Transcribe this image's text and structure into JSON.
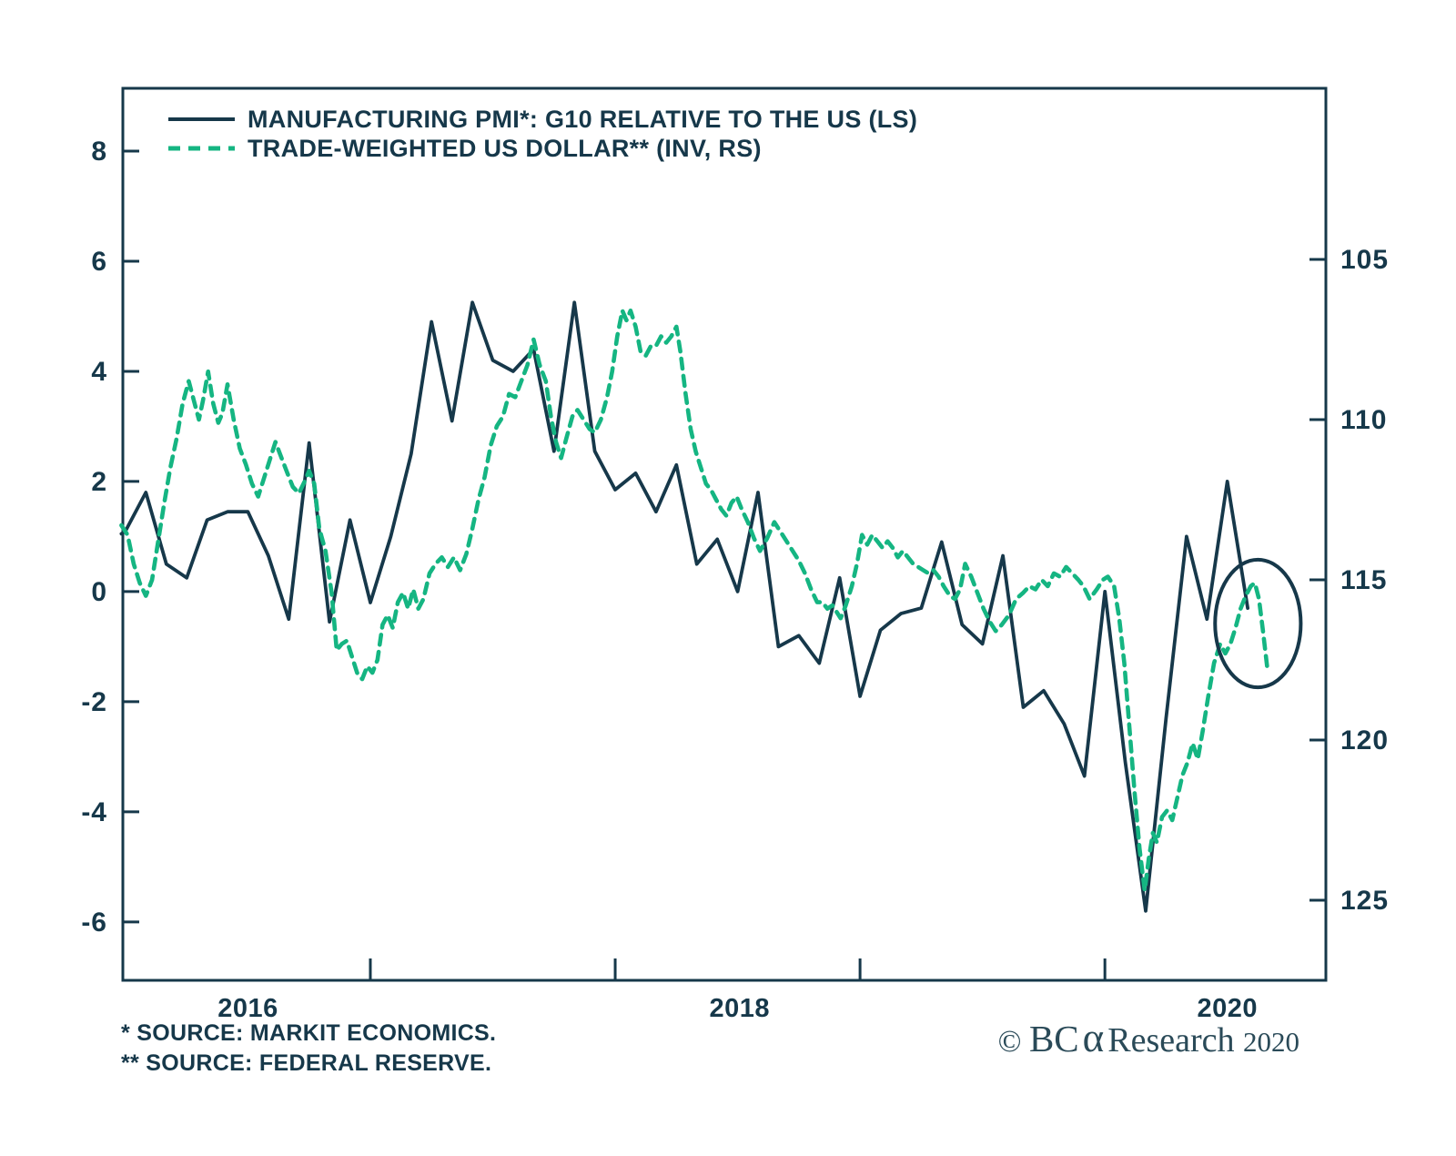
{
  "page": {
    "background": "#ffffff"
  },
  "colors": {
    "ink": "#16384a",
    "green": "#15b582",
    "text": "#16384a",
    "credit_text": "#2a4a58"
  },
  "legend": {
    "items": [
      {
        "label": "MANUFACTURING PMI*: G10 RELATIVE TO THE US (LS)",
        "style": "solid"
      },
      {
        "label": "TRADE-WEIGHTED US DOLLAR** (INV, RS)",
        "style": "dashed"
      }
    ]
  },
  "footnotes": {
    "line1": "*  SOURCE: MARKIT ECONOMICS.",
    "line2": "** SOURCE: FEDERAL RESERVE."
  },
  "credit": {
    "copyright": "© ",
    "brand_bc": "BC",
    "brand_alpha": "α",
    "name": " Research ",
    "year": "2020"
  },
  "chart_data": {
    "type": "line",
    "title": "",
    "x_axis": {
      "unit": "months since Jan 2016",
      "range": [
        -0.13,
        58.83
      ],
      "boundary_tick_months": [
        12,
        24,
        36,
        48
      ],
      "year_labels": [
        {
          "label": "2016",
          "month": 6.0
        },
        {
          "label": "2018",
          "month": 30.1
        },
        {
          "label": "2020",
          "month": 54.0
        }
      ]
    },
    "left_axis": {
      "label": "Manufacturing PMI: G10 relative to the US",
      "range": [
        -7.06,
        9.14
      ],
      "ticks": [
        8,
        6,
        4,
        2,
        0,
        -2,
        -4,
        -6
      ]
    },
    "right_axis": {
      "label": "Trade-weighted US dollar (inverted)",
      "range": [
        99.66,
        127.5
      ],
      "inverted": true,
      "ticks": [
        105,
        110,
        115,
        120,
        125
      ]
    },
    "grid": false,
    "legend_position": "top-left",
    "series": [
      {
        "name": "MANUFACTURING PMI*: G10 RELATIVE TO THE US (LS)",
        "axis": "left",
        "style": "solid",
        "points": [
          [
            -0.2,
            1.05
          ],
          [
            0,
            1.1
          ],
          [
            1,
            1.8
          ],
          [
            2,
            0.5
          ],
          [
            3,
            0.25
          ],
          [
            4,
            1.3
          ],
          [
            5,
            1.45
          ],
          [
            6,
            1.45
          ],
          [
            7,
            0.65
          ],
          [
            8,
            -0.5
          ],
          [
            9,
            2.7
          ],
          [
            10,
            -0.55
          ],
          [
            11,
            1.3
          ],
          [
            12,
            -0.2
          ],
          [
            13,
            1.0
          ],
          [
            14,
            2.5
          ],
          [
            15,
            4.9
          ],
          [
            16,
            3.1
          ],
          [
            17,
            5.25
          ],
          [
            18,
            4.2
          ],
          [
            19,
            4.0
          ],
          [
            20,
            4.4
          ],
          [
            21,
            2.55
          ],
          [
            22,
            5.25
          ],
          [
            23,
            2.55
          ],
          [
            24,
            1.85
          ],
          [
            25,
            2.15
          ],
          [
            26,
            1.45
          ],
          [
            27,
            2.3
          ],
          [
            28,
            0.5
          ],
          [
            29,
            0.95
          ],
          [
            30,
            0.0
          ],
          [
            31,
            1.8
          ],
          [
            32,
            -1.0
          ],
          [
            33,
            -0.8
          ],
          [
            34,
            -1.3
          ],
          [
            35,
            0.25
          ],
          [
            36,
            -1.9
          ],
          [
            37,
            -0.7
          ],
          [
            38,
            -0.4
          ],
          [
            39,
            -0.3
          ],
          [
            40,
            0.9
          ],
          [
            41,
            -0.6
          ],
          [
            42,
            -0.95
          ],
          [
            43,
            0.65
          ],
          [
            44,
            -2.1
          ],
          [
            45,
            -1.8
          ],
          [
            46,
            -2.4
          ],
          [
            47,
            -3.35
          ],
          [
            48,
            0.0
          ],
          [
            49,
            -3.1
          ],
          [
            50,
            -5.8
          ],
          [
            51,
            -2.3
          ],
          [
            52,
            1.0
          ],
          [
            53,
            -0.5
          ],
          [
            54,
            2.0
          ],
          [
            55,
            -0.3
          ]
        ]
      },
      {
        "name": "TRADE-WEIGHTED US DOLLAR** (INV, RS)",
        "axis": "right",
        "style": "dashed",
        "points": [
          [
            -0.2,
            113.3
          ],
          [
            0.1,
            113.6
          ],
          [
            0.4,
            114.5
          ],
          [
            0.7,
            115.1
          ],
          [
            1.0,
            115.5
          ],
          [
            1.3,
            115.0
          ],
          [
            1.6,
            113.8
          ],
          [
            1.9,
            112.6
          ],
          [
            2.2,
            111.5
          ],
          [
            2.5,
            110.6
          ],
          [
            2.8,
            109.5
          ],
          [
            3.1,
            108.8
          ],
          [
            3.35,
            109.4
          ],
          [
            3.6,
            110.0
          ],
          [
            3.8,
            109.4
          ],
          [
            4.05,
            108.5
          ],
          [
            4.3,
            109.5
          ],
          [
            4.55,
            110.1
          ],
          [
            4.75,
            109.8
          ],
          [
            5.0,
            108.9
          ],
          [
            5.3,
            110.0
          ],
          [
            5.6,
            110.9
          ],
          [
            5.9,
            111.4
          ],
          [
            6.2,
            112.0
          ],
          [
            6.5,
            112.4
          ],
          [
            6.75,
            111.9
          ],
          [
            7.05,
            111.3
          ],
          [
            7.35,
            110.7
          ],
          [
            7.65,
            111.2
          ],
          [
            7.95,
            111.7
          ],
          [
            8.2,
            112.1
          ],
          [
            8.5,
            112.3
          ],
          [
            8.8,
            111.9
          ],
          [
            9.0,
            111.6
          ],
          [
            9.25,
            112.0
          ],
          [
            9.5,
            113.4
          ],
          [
            9.8,
            114.1
          ],
          [
            10.1,
            115.4
          ],
          [
            10.35,
            117.2
          ],
          [
            10.6,
            117.0
          ],
          [
            10.85,
            116.9
          ],
          [
            11.1,
            117.4
          ],
          [
            11.35,
            117.9
          ],
          [
            11.6,
            118.1
          ],
          [
            11.85,
            117.7
          ],
          [
            12.1,
            117.9
          ],
          [
            12.35,
            117.5
          ],
          [
            12.6,
            116.4
          ],
          [
            12.85,
            116.1
          ],
          [
            13.1,
            116.5
          ],
          [
            13.35,
            115.7
          ],
          [
            13.6,
            115.4
          ],
          [
            13.85,
            115.9
          ],
          [
            14.1,
            115.3
          ],
          [
            14.35,
            115.9
          ],
          [
            14.6,
            115.6
          ],
          [
            14.9,
            114.8
          ],
          [
            15.2,
            114.5
          ],
          [
            15.5,
            114.3
          ],
          [
            15.8,
            114.6
          ],
          [
            16.1,
            114.3
          ],
          [
            16.4,
            114.7
          ],
          [
            16.7,
            114.2
          ],
          [
            17.0,
            113.4
          ],
          [
            17.3,
            112.5
          ],
          [
            17.6,
            111.8
          ],
          [
            17.9,
            110.8
          ],
          [
            18.2,
            110.2
          ],
          [
            18.5,
            109.9
          ],
          [
            18.8,
            109.2
          ],
          [
            19.1,
            109.3
          ],
          [
            19.4,
            108.8
          ],
          [
            19.7,
            108.3
          ],
          [
            20.0,
            107.5
          ],
          [
            20.3,
            108.3
          ],
          [
            20.6,
            108.8
          ],
          [
            20.85,
            109.9
          ],
          [
            21.1,
            110.7
          ],
          [
            21.35,
            111.2
          ],
          [
            21.6,
            110.6
          ],
          [
            21.9,
            109.9
          ],
          [
            22.15,
            109.7
          ],
          [
            22.45,
            110.0
          ],
          [
            22.75,
            110.3
          ],
          [
            23.0,
            110.4
          ],
          [
            23.3,
            110.0
          ],
          [
            23.6,
            109.3
          ],
          [
            23.85,
            108.5
          ],
          [
            24.1,
            107.4
          ],
          [
            24.35,
            106.6
          ],
          [
            24.55,
            106.9
          ],
          [
            24.75,
            106.6
          ],
          [
            25.0,
            107.1
          ],
          [
            25.25,
            107.9
          ],
          [
            25.5,
            108.0
          ],
          [
            25.75,
            107.7
          ],
          [
            26.0,
            107.7
          ],
          [
            26.25,
            107.4
          ],
          [
            26.5,
            107.6
          ],
          [
            26.75,
            107.4
          ],
          [
            27.0,
            107.1
          ],
          [
            27.2,
            107.9
          ],
          [
            27.45,
            109.2
          ],
          [
            27.7,
            110.3
          ],
          [
            27.95,
            111.0
          ],
          [
            28.2,
            111.5
          ],
          [
            28.45,
            112.0
          ],
          [
            28.7,
            112.2
          ],
          [
            28.95,
            112.5
          ],
          [
            29.2,
            112.8
          ],
          [
            29.45,
            113.0
          ],
          [
            29.7,
            112.6
          ],
          [
            29.95,
            112.4
          ],
          [
            30.2,
            112.8
          ],
          [
            30.5,
            113.2
          ],
          [
            30.8,
            113.7
          ],
          [
            31.1,
            114.1
          ],
          [
            31.45,
            113.7
          ],
          [
            31.8,
            113.2
          ],
          [
            32.1,
            113.5
          ],
          [
            32.4,
            113.8
          ],
          [
            32.7,
            114.1
          ],
          [
            33.0,
            114.4
          ],
          [
            33.3,
            114.8
          ],
          [
            33.6,
            115.3
          ],
          [
            33.9,
            115.7
          ],
          [
            34.15,
            115.7
          ],
          [
            34.4,
            115.9
          ],
          [
            34.65,
            115.8
          ],
          [
            34.85,
            116.0
          ],
          [
            35.05,
            116.2
          ],
          [
            35.3,
            115.8
          ],
          [
            35.6,
            115.2
          ],
          [
            35.85,
            114.5
          ],
          [
            36.1,
            113.6
          ],
          [
            36.35,
            113.9
          ],
          [
            36.6,
            113.6
          ],
          [
            36.85,
            113.8
          ],
          [
            37.1,
            114.0
          ],
          [
            37.35,
            113.8
          ],
          [
            37.6,
            114.0
          ],
          [
            37.85,
            114.3
          ],
          [
            38.1,
            114.1
          ],
          [
            38.35,
            114.3
          ],
          [
            38.6,
            114.5
          ],
          [
            38.85,
            114.6
          ],
          [
            39.1,
            114.7
          ],
          [
            39.35,
            114.8
          ],
          [
            39.6,
            114.7
          ],
          [
            39.85,
            114.9
          ],
          [
            40.1,
            115.2
          ],
          [
            40.4,
            115.5
          ],
          [
            40.65,
            115.6
          ],
          [
            40.9,
            115.3
          ],
          [
            41.15,
            114.5
          ],
          [
            41.45,
            114.9
          ],
          [
            41.75,
            115.4
          ],
          [
            42.05,
            115.9
          ],
          [
            42.35,
            116.3
          ],
          [
            42.65,
            116.6
          ],
          [
            42.95,
            116.4
          ],
          [
            43.3,
            116.1
          ],
          [
            43.65,
            115.6
          ],
          [
            44.0,
            115.4
          ],
          [
            44.3,
            115.2
          ],
          [
            44.6,
            115.3
          ],
          [
            44.9,
            115.0
          ],
          [
            45.2,
            115.2
          ],
          [
            45.5,
            114.8
          ],
          [
            45.8,
            114.9
          ],
          [
            46.1,
            114.6
          ],
          [
            46.4,
            114.8
          ],
          [
            46.7,
            115.0
          ],
          [
            46.95,
            115.2
          ],
          [
            47.25,
            115.6
          ],
          [
            47.6,
            115.3
          ],
          [
            47.9,
            115.0
          ],
          [
            48.15,
            114.9
          ],
          [
            48.45,
            115.2
          ],
          [
            48.7,
            116.2
          ],
          [
            48.95,
            117.6
          ],
          [
            49.2,
            119.6
          ],
          [
            49.45,
            121.6
          ],
          [
            49.7,
            123.4
          ],
          [
            49.95,
            124.7
          ],
          [
            50.15,
            123.7
          ],
          [
            50.35,
            122.9
          ],
          [
            50.55,
            123.2
          ],
          [
            50.8,
            122.4
          ],
          [
            51.05,
            122.2
          ],
          [
            51.3,
            122.5
          ],
          [
            51.55,
            121.8
          ],
          [
            51.8,
            121.1
          ],
          [
            52.05,
            120.7
          ],
          [
            52.3,
            120.1
          ],
          [
            52.55,
            120.6
          ],
          [
            52.8,
            119.7
          ],
          [
            53.05,
            118.7
          ],
          [
            53.35,
            117.6
          ],
          [
            53.65,
            117.0
          ],
          [
            53.9,
            117.3
          ],
          [
            54.15,
            117.0
          ],
          [
            54.4,
            116.5
          ],
          [
            54.65,
            115.9
          ],
          [
            54.9,
            115.5
          ],
          [
            55.15,
            115.2
          ],
          [
            55.35,
            115.1
          ],
          [
            55.55,
            115.6
          ],
          [
            55.75,
            116.6
          ],
          [
            55.95,
            117.7
          ]
        ]
      }
    ],
    "annotation": {
      "shape": "ellipse",
      "month": 55.5,
      "left_value": -0.58,
      "rx_months": 2.1,
      "ry_left_units": 1.16
    }
  }
}
